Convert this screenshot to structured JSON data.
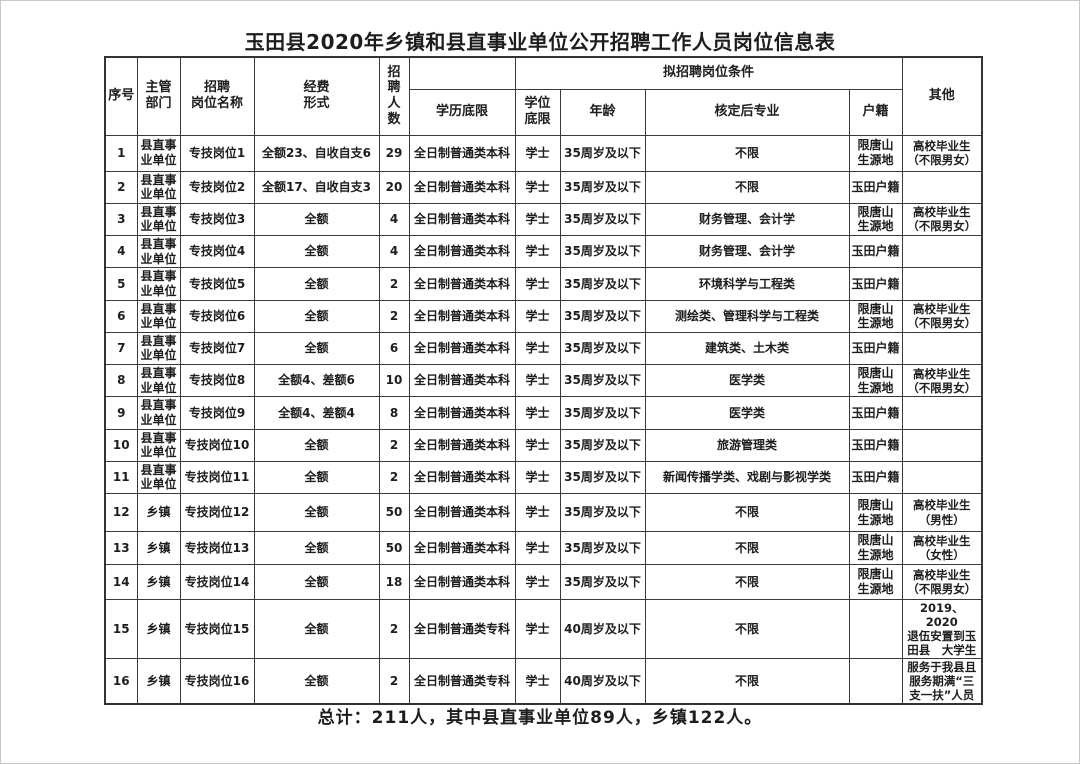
{
  "page": {
    "title": "玉田县2020年乡镇和县直事业单位公开招聘工作人员岗位信息表",
    "summary": "总计：211人，其中县直事业单位89人，乡镇122人。"
  },
  "table": {
    "headers": {
      "serial": "序号",
      "department": "主管\n部门",
      "post_name": "招聘\n岗位名称",
      "fund_type": "经费\n形式",
      "recruit_count": "招聘\n人数",
      "conditions_group": "拟招聘岗位条件",
      "education": "学历底限",
      "degree": "学位\n底限",
      "age": "年龄",
      "major": "核定后专业",
      "household": "户籍",
      "other": "其他"
    },
    "rows": [
      {
        "no": "1",
        "dept": "县直事业单位",
        "post": "专技岗位1",
        "fund": "全额23、自收自支6",
        "count": "29",
        "edu": "全日制普通类本科",
        "degree": "学士",
        "age": "35周岁及以下",
        "major": "不限",
        "huji": "限唐山\n生源地",
        "other": "高校毕业生\n（不限男女）"
      },
      {
        "no": "2",
        "dept": "县直事业单位",
        "post": "专技岗位2",
        "fund": "全额17、自收自支3",
        "count": "20",
        "edu": "全日制普通类本科",
        "degree": "学士",
        "age": "35周岁及以下",
        "major": "不限",
        "huji": "玉田户籍",
        "other": ""
      },
      {
        "no": "3",
        "dept": "县直事业单位",
        "post": "专技岗位3",
        "fund": "全额",
        "count": "4",
        "edu": "全日制普通类本科",
        "degree": "学士",
        "age": "35周岁及以下",
        "major": "财务管理、会计学",
        "huji": "限唐山\n生源地",
        "other": "高校毕业生\n（不限男女）"
      },
      {
        "no": "4",
        "dept": "县直事业单位",
        "post": "专技岗位4",
        "fund": "全额",
        "count": "4",
        "edu": "全日制普通类本科",
        "degree": "学士",
        "age": "35周岁及以下",
        "major": "财务管理、会计学",
        "huji": "玉田户籍",
        "other": ""
      },
      {
        "no": "5",
        "dept": "县直事业单位",
        "post": "专技岗位5",
        "fund": "全额",
        "count": "2",
        "edu": "全日制普通类本科",
        "degree": "学士",
        "age": "35周岁及以下",
        "major": "环境科学与工程类",
        "huji": "玉田户籍",
        "other": ""
      },
      {
        "no": "6",
        "dept": "县直事业单位",
        "post": "专技岗位6",
        "fund": "全额",
        "count": "2",
        "edu": "全日制普通类本科",
        "degree": "学士",
        "age": "35周岁及以下",
        "major": "测绘类、管理科学与工程类",
        "huji": "限唐山\n生源地",
        "other": "高校毕业生\n（不限男女）"
      },
      {
        "no": "7",
        "dept": "县直事业单位",
        "post": "专技岗位7",
        "fund": "全额",
        "count": "6",
        "edu": "全日制普通类本科",
        "degree": "学士",
        "age": "35周岁及以下",
        "major": "建筑类、土木类",
        "huji": "玉田户籍",
        "other": ""
      },
      {
        "no": "8",
        "dept": "县直事业单位",
        "post": "专技岗位8",
        "fund": "全额4、差额6",
        "count": "10",
        "edu": "全日制普通类本科",
        "degree": "学士",
        "age": "35周岁及以下",
        "major": "医学类",
        "huji": "限唐山\n生源地",
        "other": "高校毕业生\n（不限男女）"
      },
      {
        "no": "9",
        "dept": "县直事业单位",
        "post": "专技岗位9",
        "fund": "全额4、差额4",
        "count": "8",
        "edu": "全日制普通类本科",
        "degree": "学士",
        "age": "35周岁及以下",
        "major": "医学类",
        "huji": "玉田户籍",
        "other": ""
      },
      {
        "no": "10",
        "dept": "县直事业单位",
        "post": "专技岗位10",
        "fund": "全额",
        "count": "2",
        "edu": "全日制普通类本科",
        "degree": "学士",
        "age": "35周岁及以下",
        "major": "旅游管理类",
        "huji": "玉田户籍",
        "other": ""
      },
      {
        "no": "11",
        "dept": "县直事业单位",
        "post": "专技岗位11",
        "fund": "全额",
        "count": "2",
        "edu": "全日制普通类本科",
        "degree": "学士",
        "age": "35周岁及以下",
        "major": "新闻传播学类、戏剧与影视学类",
        "huji": "玉田户籍",
        "other": ""
      },
      {
        "no": "12",
        "dept": "乡镇",
        "post": "专技岗位12",
        "fund": "全额",
        "count": "50",
        "edu": "全日制普通类本科",
        "degree": "学士",
        "age": "35周岁及以下",
        "major": "不限",
        "huji": "限唐山\n生源地",
        "other": "高校毕业生\n（男性）"
      },
      {
        "no": "13",
        "dept": "乡镇",
        "post": "专技岗位13",
        "fund": "全额",
        "count": "50",
        "edu": "全日制普通类本科",
        "degree": "学士",
        "age": "35周岁及以下",
        "major": "不限",
        "huji": "限唐山\n生源地",
        "other": "高校毕业生\n（女性）"
      },
      {
        "no": "14",
        "dept": "乡镇",
        "post": "专技岗位14",
        "fund": "全额",
        "count": "18",
        "edu": "全日制普通类本科",
        "degree": "学士",
        "age": "35周岁及以下",
        "major": "不限",
        "huji": "限唐山\n生源地",
        "other": "高校毕业生\n（不限男女）"
      },
      {
        "no": "15",
        "dept": "乡镇",
        "post": "专技岗位15",
        "fund": "全额",
        "count": "2",
        "edu": "全日制普通类专科",
        "degree": "学士",
        "age": "40周岁及以下",
        "major": "不限",
        "huji": "",
        "other": "2019、2020\n退伍安置到玉\n田县　大学生"
      },
      {
        "no": "16",
        "dept": "乡镇",
        "post": "专技岗位16",
        "fund": "全额",
        "count": "2",
        "edu": "全日制普通类专科",
        "degree": "学士",
        "age": "40周岁及以下",
        "major": "不限",
        "huji": "",
        "other": "服务于我县且\n服务期满“三\n支一扶”人员"
      }
    ]
  }
}
